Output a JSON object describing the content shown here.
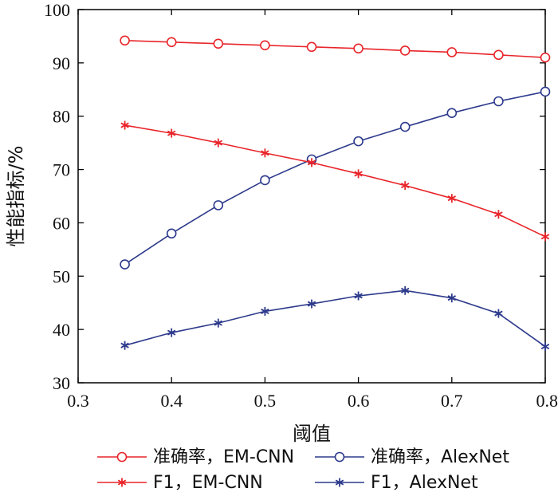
{
  "chart_data": {
    "type": "line",
    "title": "",
    "xlabel": "阈值",
    "ylabel": "性能指标/%",
    "xlim": [
      0.3,
      0.8
    ],
    "ylim": [
      30,
      100
    ],
    "xticks": [
      "0.3",
      "0.4",
      "0.5",
      "0.6",
      "0.7",
      "0.8"
    ],
    "yticks": [
      "30",
      "40",
      "50",
      "60",
      "70",
      "80",
      "90",
      "100"
    ],
    "grid": false,
    "legend_position": "bottom",
    "x": [
      0.35,
      0.4,
      0.45,
      0.5,
      0.55,
      0.6,
      0.65,
      0.7,
      0.75,
      0.8
    ],
    "series": [
      {
        "name": "准确率，EM-CNN",
        "color": "#e8252a",
        "marker": "circle",
        "values": [
          94.2,
          93.9,
          93.6,
          93.3,
          93.0,
          92.7,
          92.3,
          92.0,
          91.5,
          91.0
        ]
      },
      {
        "name": "准确率，AlexNet",
        "color": "#2d3a8c",
        "marker": "circle",
        "values": [
          52.2,
          58.0,
          63.3,
          68.0,
          71.9,
          75.3,
          78.0,
          80.6,
          82.8,
          84.6
        ]
      },
      {
        "name": "F1，EM-CNN",
        "color": "#e8252a",
        "marker": "star",
        "values": [
          78.3,
          76.8,
          75.0,
          73.1,
          71.3,
          69.2,
          67.0,
          64.6,
          61.6,
          57.4
        ]
      },
      {
        "name": "F1，AlexNet",
        "color": "#2d3a8c",
        "marker": "star",
        "values": [
          37.0,
          39.4,
          41.2,
          43.4,
          44.8,
          46.3,
          47.3,
          45.9,
          43.0,
          36.8
        ]
      }
    ]
  }
}
